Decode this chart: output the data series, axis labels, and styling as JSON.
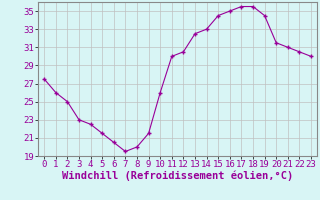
{
  "x": [
    0,
    1,
    2,
    3,
    4,
    5,
    6,
    7,
    8,
    9,
    10,
    11,
    12,
    13,
    14,
    15,
    16,
    17,
    18,
    19,
    20,
    21,
    22,
    23
  ],
  "y": [
    27.5,
    26.0,
    25.0,
    23.0,
    22.5,
    21.5,
    20.5,
    19.5,
    20.0,
    21.5,
    26.0,
    30.0,
    30.5,
    32.5,
    33.0,
    34.5,
    35.0,
    35.5,
    35.5,
    34.5,
    31.5,
    31.0,
    30.5,
    30.0
  ],
  "line_color": "#990099",
  "marker": "+",
  "marker_size": 3,
  "bg_color": "#d8f5f5",
  "grid_color": "#c0c0c0",
  "xlabel": "Windchill (Refroidissement éolien,°C)",
  "ylabel": "",
  "ylim": [
    19,
    36
  ],
  "xlim": [
    -0.5,
    23.5
  ],
  "yticks": [
    19,
    21,
    23,
    25,
    27,
    29,
    31,
    33,
    35
  ],
  "xticks": [
    0,
    1,
    2,
    3,
    4,
    5,
    6,
    7,
    8,
    9,
    10,
    11,
    12,
    13,
    14,
    15,
    16,
    17,
    18,
    19,
    20,
    21,
    22,
    23
  ],
  "tick_color": "#990099",
  "tick_fontsize": 6.5,
  "label_fontsize": 7.5,
  "label_fontweight": "bold"
}
